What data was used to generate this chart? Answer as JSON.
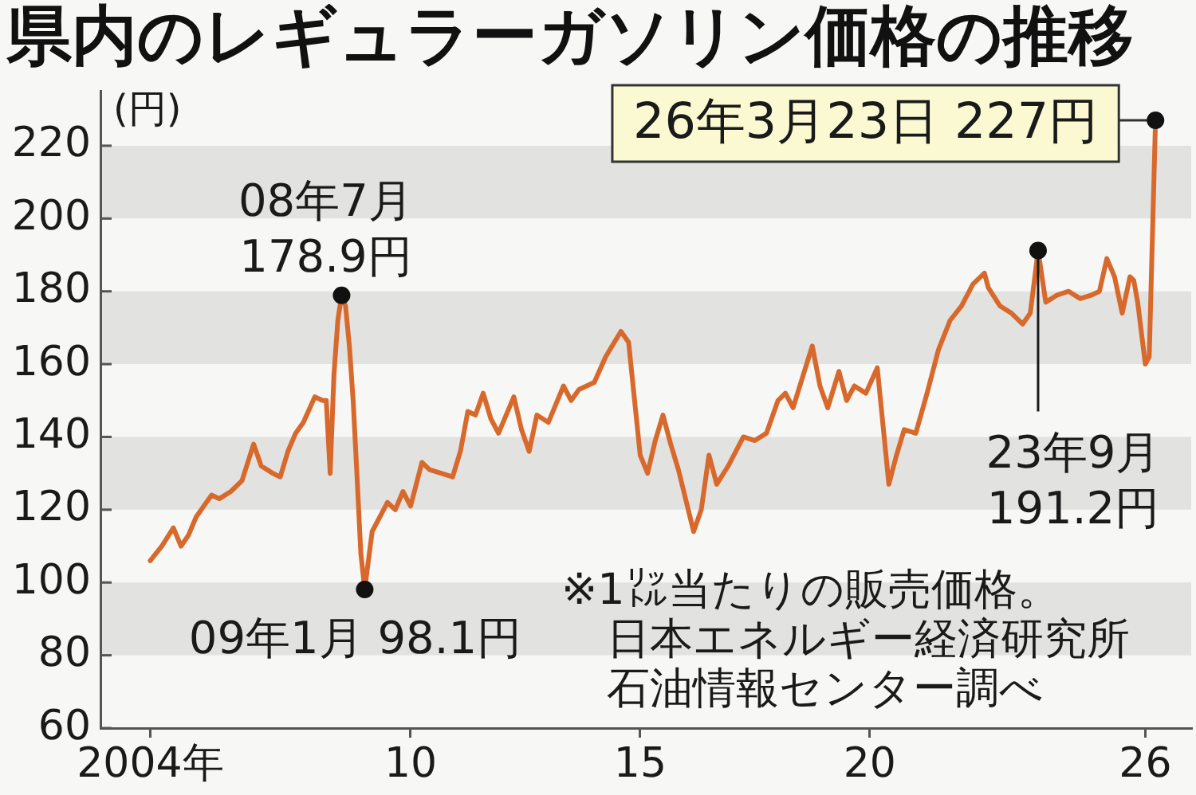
{
  "chart_data": {
    "type": "line",
    "title": "県内のレギュラーガソリン価格の推移",
    "ylabel": "(円)",
    "x": [
      "2004-05",
      "2004-08",
      "2004-11",
      "2005-01",
      "2005-03",
      "2005-05",
      "2005-07",
      "2005-09",
      "2005-11",
      "2006-02",
      "2006-05",
      "2006-08",
      "2006-10",
      "2007-01",
      "2007-03",
      "2007-05",
      "2007-07",
      "2007-09",
      "2007-12",
      "2008-02",
      "2008-03",
      "2008-04",
      "2008-05",
      "2008-06",
      "2008-07",
      "2008-08",
      "2008-09",
      "2008-10",
      "2008-11",
      "2008-12",
      "2009-01",
      "2009-03",
      "2009-05",
      "2009-07",
      "2009-09",
      "2009-11",
      "2010-01",
      "2010-04",
      "2010-06",
      "2010-09",
      "2010-12",
      "2011-02",
      "2011-04",
      "2011-06",
      "2011-08",
      "2011-10",
      "2011-12",
      "2012-04",
      "2012-06",
      "2012-08",
      "2012-10",
      "2013-01",
      "2013-05",
      "2013-07",
      "2013-09",
      "2014-01",
      "2014-04",
      "2014-08",
      "2014-10",
      "2015-01",
      "2015-03",
      "2015-05",
      "2015-07",
      "2015-09",
      "2015-11",
      "2016-03",
      "2016-05",
      "2016-07",
      "2016-09",
      "2016-12",
      "2017-04",
      "2017-07",
      "2017-10",
      "2018-01",
      "2018-03",
      "2018-05",
      "2018-10",
      "2018-12",
      "2019-02",
      "2019-05",
      "2019-07",
      "2019-09",
      "2019-12",
      "2020-03",
      "2020-06",
      "2020-08",
      "2020-10",
      "2021-01",
      "2021-04",
      "2021-07",
      "2021-10",
      "2022-01",
      "2022-04",
      "2022-07",
      "2022-08",
      "2022-11",
      "2023-02",
      "2023-05",
      "2023-07",
      "2023-09",
      "2023-11",
      "2024-02",
      "2024-05",
      "2024-08",
      "2024-11",
      "2025-01",
      "2025-03",
      "2025-05",
      "2025-07",
      "2025-09",
      "2025-10",
      "2025-11",
      "2026-01",
      "2026-02",
      "2026-03-23"
    ],
    "series": [
      {
        "color": "#d8692c",
        "values": [
          106,
          110,
          115,
          110,
          113,
          118,
          121,
          124,
          123,
          125,
          128,
          138,
          132,
          130,
          129,
          136,
          141,
          144,
          151,
          150,
          150,
          130,
          157,
          172,
          178.9,
          176,
          165,
          150,
          129,
          108,
          98.1,
          114,
          118,
          122,
          120,
          125,
          121,
          133,
          131,
          130,
          129,
          136,
          147,
          146,
          152,
          145,
          141,
          151,
          142,
          136,
          146,
          144,
          154,
          150,
          153,
          155,
          162,
          169,
          166,
          135,
          130,
          139,
          146,
          138,
          131,
          114,
          120,
          135,
          127,
          132,
          140,
          139,
          141,
          150,
          152,
          148,
          165,
          154,
          148,
          158,
          150,
          154,
          152,
          159,
          127,
          135,
          142,
          141,
          152,
          164,
          172,
          176,
          182,
          185,
          181,
          176,
          174,
          171,
          174,
          191.2,
          177,
          179,
          180,
          178,
          179,
          180,
          189,
          184,
          174,
          184,
          183,
          177,
          160,
          162,
          227
        ]
      }
    ],
    "xlim": [
      "2003-04",
      "2027-01"
    ],
    "xticks": [
      {
        "value": "2004-05",
        "label": "2004年"
      },
      {
        "value": "2010",
        "label": "10"
      },
      {
        "value": "2015",
        "label": "15"
      },
      {
        "value": "2020",
        "label": "20"
      },
      {
        "value": "2026",
        "label": "26"
      }
    ],
    "ylim": [
      60,
      235
    ],
    "yticks": [
      60,
      80,
      100,
      120,
      140,
      160,
      180,
      200,
      220
    ],
    "bands": [
      {
        "axis": "y",
        "from": 80,
        "to": 100,
        "color": "#e2e2e0"
      },
      {
        "axis": "y",
        "from": 120,
        "to": 140,
        "color": "#e2e2e0"
      },
      {
        "axis": "y",
        "from": 160,
        "to": 180,
        "color": "#e2e2e0"
      },
      {
        "axis": "y",
        "from": 200,
        "to": 220,
        "color": "#e2e2e0"
      }
    ],
    "annotations": [
      {
        "text": "08年7月\n178.9円",
        "x": "2008-07",
        "y": 178.9
      },
      {
        "text": "09年1月 98.1円",
        "x": "2009-01",
        "y": 98.1
      },
      {
        "text": "23年9月\n191.2円",
        "x": "2023-09",
        "y": 191.2
      },
      {
        "text": "26年3月23日 227円",
        "x": "2026-03-23",
        "y": 227
      },
      "※1㍑当たりの販売価格。",
      "日本エネルギー経済研究所石油情報センター調べ"
    ]
  }
}
